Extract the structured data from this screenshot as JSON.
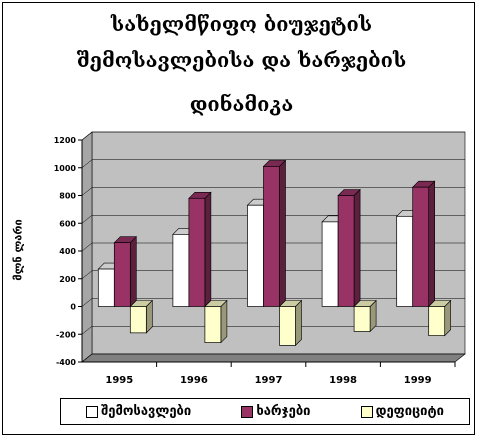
{
  "chart_data": {
    "type": "bar",
    "title_lines": [
      "სახელმწიფო ბიუჯეტის",
      "შემოსავლებისა და ხარჯების",
      "დინამიკა"
    ],
    "ylabel": "მლნ ლარი",
    "categories": [
      "1995",
      "1996",
      "1997",
      "1998",
      "1999"
    ],
    "series": [
      {
        "name": "შემოსავლები",
        "values": [
          270,
          520,
          730,
          610,
          650
        ],
        "color": "#ffffff"
      },
      {
        "name": "ხარჯები",
        "values": [
          460,
          780,
          1010,
          800,
          860
        ],
        "color": "#993366"
      },
      {
        "name": "დეფიციტი",
        "values": [
          -190,
          -260,
          -280,
          -180,
          -210
        ],
        "color": "#ffffcc"
      }
    ],
    "yticks": [
      "1200",
      "1000",
      "800",
      "600",
      "400",
      "200",
      "0",
      "-200",
      "-400"
    ],
    "ylim": [
      -400,
      1200
    ],
    "grid": true,
    "background": "#c0c0c0",
    "legend_position": "bottom"
  }
}
